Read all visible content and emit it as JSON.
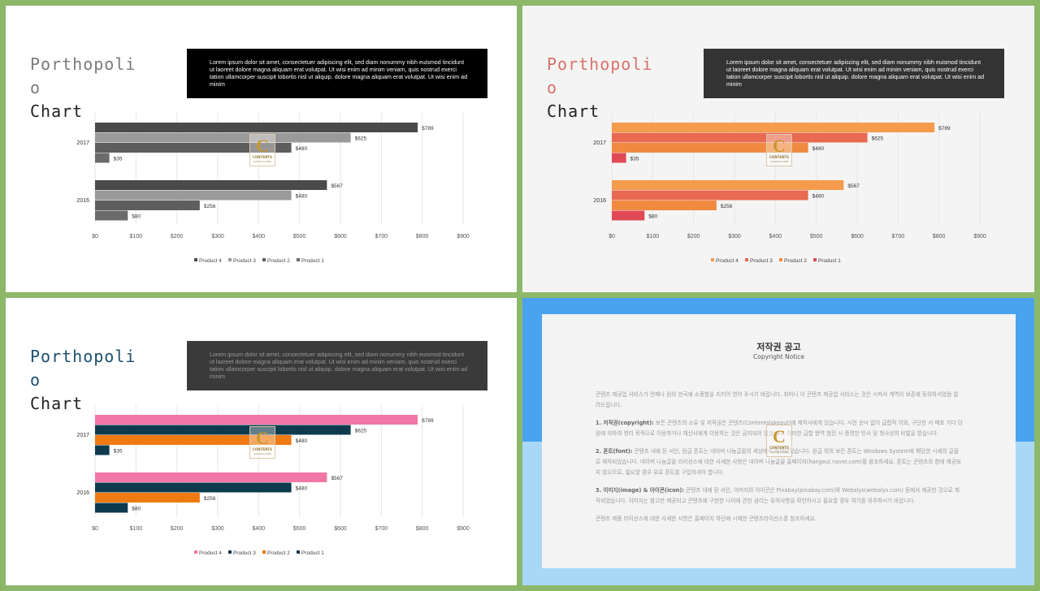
{
  "slides": [
    {
      "title_lines": [
        "Porthopoli",
        "o",
        "Chart"
      ],
      "title_color": "#7a7a7a",
      "title_last_color": "#222222",
      "textbox_bg": "#000000",
      "textbox_color": "#ffffff",
      "body": "Lorem ipsum dolor sit amet, consectetuer adipiscing elit, sed diam nonummy nibh euismod tincidunt ut laoreet dolore magna aliquam erat volutpat. Ut wisi enim ad minim veniam, quis nostrud exerci tation ullamcorper suscipit lobortis nisl ut aliquip. dolore magna aliquam erat volutpat. Ut wisi enim ad minim",
      "series_colors": [
        "#4a4a4a",
        "#9a9a9a",
        "#5e5e5e",
        "#6b6b6b"
      ]
    },
    {
      "title_lines": [
        "Porthopoli",
        "o",
        "Chart"
      ],
      "title_color": "#d9716b",
      "title_last_color": "#222222",
      "textbox_bg": "#333333",
      "textbox_color": "#ffffff",
      "body": "Lorem ipsum dolor sit amet, consectetuer adipiscing elit, sed diam nonummy nibh euismod tincidunt ut laoreet dolore magna aliquam erat volutpat. Ut wisi enim ad minim veniam, quis nostrud exerci tation ullamcorper suscipit lobortis nisl ut aliquip. dolore magna aliquam erat volutpat. Ut wisi enim ad minim",
      "series_colors": [
        "#f59b4c",
        "#e86a50",
        "#f08a40",
        "#e04a55"
      ]
    },
    {
      "title_lines": [
        "Porthopoli",
        "o",
        "Chart"
      ],
      "title_color": "#1d4f6e",
      "title_last_color": "#222222",
      "textbox_bg": "#3a3a3a",
      "textbox_color": "#9a9a9a",
      "body": "Lorem ipsum dolor sit amet, consectetuer adipiscing elit, sed diam nonummy nibh euismod tincidunt ut laoreet dolore magna aliquam erat volutpat. Ut wisi enim ad minim veniam, quis nostrud exerci tation ullamcorper suscipit lobortis nisl ut aliquip. dolore magna aliquam erat volutpat. Ut wisi enim ad minim",
      "series_colors": [
        "#f276a6",
        "#0e3a4e",
        "#f07a12",
        "#0e3a4e"
      ]
    }
  ],
  "chart_data": {
    "type": "bar",
    "orientation": "horizontal",
    "categories": [
      "2017",
      "2016"
    ],
    "series": [
      {
        "name": "Product 4",
        "values": [
          789,
          567
        ]
      },
      {
        "name": "Product 3",
        "values": [
          625,
          480
        ]
      },
      {
        "name": "Product 2",
        "values": [
          480,
          256
        ]
      },
      {
        "name": "Product 1",
        "values": [
          35,
          80
        ]
      }
    ],
    "xticks": [
      "$0",
      "$100",
      "$200",
      "$300",
      "$400",
      "$500",
      "$600",
      "$700",
      "$800",
      "$900"
    ],
    "xlim": [
      0,
      900
    ],
    "value_prefix": "$",
    "legend": "bottom",
    "grid": true
  },
  "watermark": {
    "letter": "C",
    "title": "CONTENTS",
    "sub": "LOGOS-S.COM"
  },
  "notice": {
    "title": "저작권 공고",
    "subtitle": "Copyright Notice",
    "paragraphs": [
      {
        "bold": "",
        "text": "콘텐츠 제공업 서비스가 언제나 원의 한국에 소중함을 지키어 영어 주시기 바랍니다. 취미니 이 콘텐츠 제공업 서비스는 것은 시켜서 계역이 보존에 동의하셔었음 알려드립니다."
      },
      {
        "bold": "1. 저작권(copyright):",
        "text": " 보든 콘텐츠의 소유 및 저작권은 콘텐츠(Contentslakeout)에 제작사에게 있습니다. 시전 승낙 없이 급합적 이외, 구단한 서 베포 기다 당원에 의하여 영리 목적으로 이용하거나 재산사에게 이용하는 것은 금지되어 있습니다. 이러한 급합 현역 범진 시 증명한 민사 및 형사상의 비벌을 받습니다."
      },
      {
        "bold": "2. 폰트(font):",
        "text": " 콘텐츠 내에 된 서인, 원급 폰트는 네이버 나눔글꼴의 세상에서 제작되었습니다. 원급 외의 보든 폰트는 Windows System에 해당한 시세의 글꼴로 제작되었습니다. 네이버 나눔글꼴 라이선스에 대한 사세한 사항은 네이버 나눔글꼴 홈페이지(hangeul.naver.com)를 참조하세요. 폰트는 콘텐츠의 함에 제공되지 않으므로, 필요할 경우 유료 폰트를 구입하셔야 합니다."
      },
      {
        "bold": "3. 이미지(image) & 아이콘(icon):",
        "text": " 콘텐츠 내에 된 서인, 이미지의 아이콘은 Pixabay(pixabay.com)와 Webalys(webalys.com) 등에서 제공한 것으로 제작되었습니다. 이미지는 참고만 제공되고 콘텐츠에 구현한 나이에 관한 권리는 유의사항을 확인하시고 필요할 경우 여기를 위주하시기 바랍니다."
      },
      {
        "bold": "",
        "text": "콘텐츠 제품 라이선스에 대한 사세한 사항은 홈페이지 하단에 시재한 콘텐츠라이선스를 참조하세요."
      }
    ]
  }
}
